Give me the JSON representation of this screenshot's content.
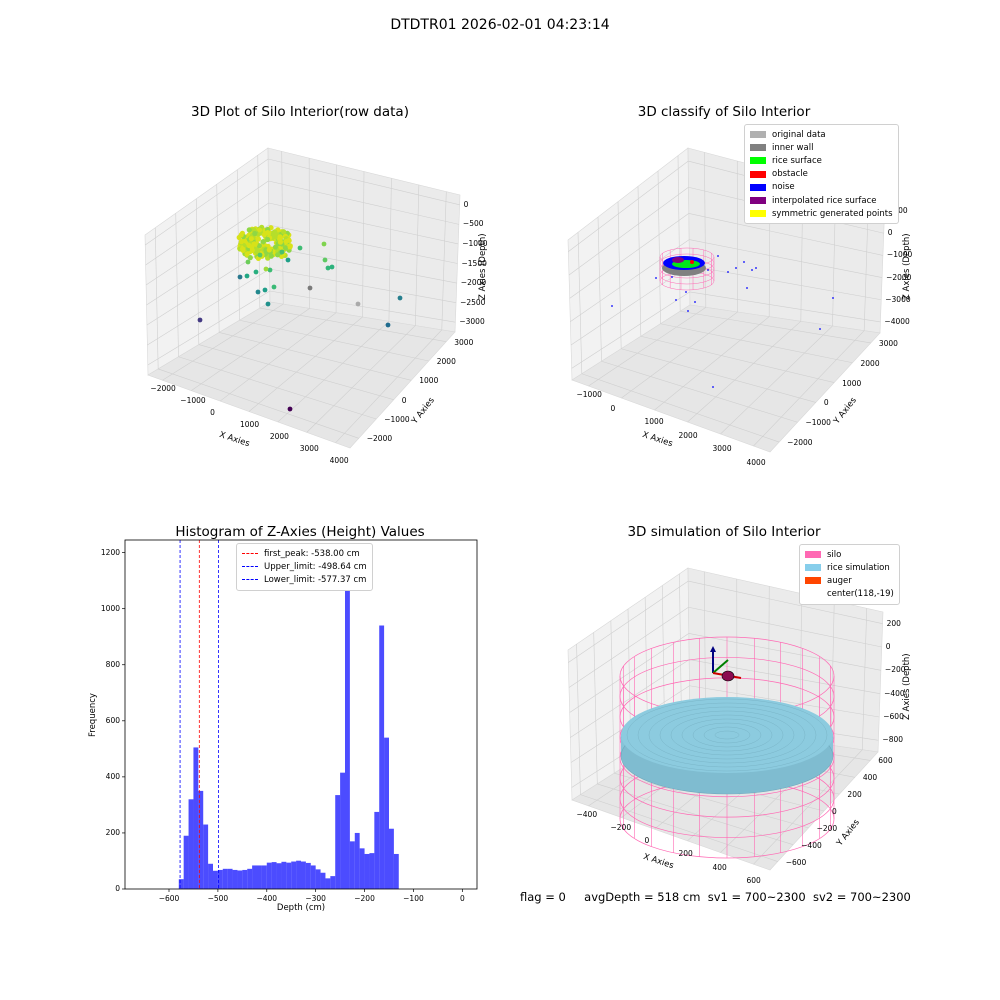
{
  "figure": {
    "suptitle": "DTDTR01 2026-02-01 04:23:14",
    "footer": {
      "flag": "flag = 0",
      "avg": "avgDepth = 518 cm",
      "sv1": "sv1 = 700~2300",
      "sv2": "sv2 = 700~2300"
    }
  },
  "panels": {
    "raw": {
      "title": "3D Plot of Silo Interior(row data)",
      "xlabel": "X Axies",
      "ylabel": "Y Axies",
      "zlabel": "Z Axies (Depth)",
      "xticks": [
        "−2000",
        "−1000",
        "0",
        "1000",
        "2000",
        "3000",
        "4000"
      ],
      "yticks": [
        "3000",
        "2000",
        "1000",
        "0",
        "−1000",
        "−2000"
      ],
      "zticks": [
        "0",
        "−500",
        "−1000",
        "−1500",
        "−2000",
        "−2500",
        "−3000"
      ]
    },
    "classify": {
      "title": "3D classify of Silo Interior",
      "xlabel": "X Axies",
      "ylabel": "Y Axies",
      "zlabel": "Z Axies (Depth)",
      "xticks": [
        "−1000",
        "0",
        "1000",
        "2000",
        "3000",
        "4000"
      ],
      "yticks": [
        "3000",
        "2000",
        "1000",
        "0",
        "−1000",
        "−2000"
      ],
      "zticks": [
        "1000",
        "0",
        "−1000",
        "−2000",
        "−3000",
        "−4000"
      ],
      "legend": [
        {
          "label": "original data",
          "color": "#b0b0b0"
        },
        {
          "label": "inner wall",
          "color": "#808080"
        },
        {
          "label": "rice surface",
          "color": "#00ff00"
        },
        {
          "label": "obstacle",
          "color": "#ff0000"
        },
        {
          "label": "noise",
          "color": "#0000ff"
        },
        {
          "label": "interpolated rice surface",
          "color": "#800080"
        },
        {
          "label": "symmetric generated points",
          "color": "#ffff00"
        }
      ]
    },
    "simulation": {
      "title": "3D simulation of Silo Interior",
      "xlabel": "X Axies",
      "ylabel": "Y Axies",
      "zlabel": "Z Axies (Depth)",
      "xticks": [
        "−400",
        "−200",
        "0",
        "200",
        "400",
        "600"
      ],
      "yticks": [
        "600",
        "400",
        "200",
        "0",
        "−200",
        "−400",
        "−600"
      ],
      "zticks": [
        "200",
        "0",
        "−200",
        "−400",
        "−600",
        "−800"
      ],
      "legend": [
        {
          "label": "silo",
          "color": "#ff69b4"
        },
        {
          "label": "rice simulation",
          "color": "#87ceeb"
        },
        {
          "label": "auger",
          "color": "#ff4500"
        },
        {
          "label": "center(118,-19)",
          "color": ""
        }
      ]
    }
  },
  "chart_data": {
    "type": "bar",
    "title": "Histogram of Z-Axies (Height) Values",
    "xlabel": "Depth (cm)",
    "ylabel": "Frequency",
    "xlim": [
      -690,
      30
    ],
    "ylim": [
      0,
      1245
    ],
    "xticks": [
      -600,
      -500,
      -400,
      -300,
      -200,
      -100,
      0
    ],
    "yticks": [
      0,
      200,
      400,
      600,
      800,
      1000,
      1200
    ],
    "bin_start": -580,
    "bin_width": 10,
    "values": [
      35,
      190,
      320,
      505,
      350,
      230,
      90,
      65,
      68,
      72,
      72,
      68,
      66,
      68,
      72,
      84,
      84,
      84,
      94,
      96,
      92,
      97,
      94,
      98,
      101,
      98,
      93,
      84,
      70,
      58,
      38,
      46,
      335,
      415,
      1185,
      170,
      200,
      145,
      125,
      128,
      275,
      940,
      540,
      215,
      125
    ],
    "color": "#0000ff",
    "lines": [
      {
        "label": "first_peak: -538.00 cm",
        "x": -538.0,
        "color": "#ff0000"
      },
      {
        "label": "Upper_limit: -498.64 cm",
        "x": -498.64,
        "color": "#0000ff"
      },
      {
        "label": "Lower_limit: -577.37 cm",
        "x": -577.37,
        "color": "#0000ff"
      }
    ]
  }
}
